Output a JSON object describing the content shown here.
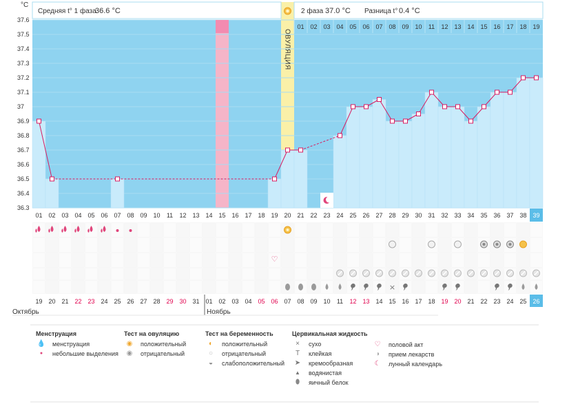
{
  "chart_data": {
    "type": "line",
    "title": "",
    "ylabel": "°C",
    "ylim": [
      36.3,
      37.6
    ],
    "yticks": [
      "37.6",
      "37.5",
      "37.4",
      "37.3",
      "37.2",
      "37.1",
      "37",
      "36.9",
      "36.8",
      "36.7",
      "36.6",
      "36.5",
      "36.4",
      "36.3"
    ],
    "header": {
      "phase1": "Средняя t° 1 фаза",
      "phase1_value": "36.6 °C",
      "phase2": "2 фаза",
      "phase2_value": "37.0 °C",
      "diff": "Разница t°",
      "diff_value": "0.4 °C"
    },
    "ovulation_label": "ОВУЛЯЦИЯ",
    "ovulation_day": 20,
    "highlight_day": 15,
    "today_day": 39,
    "cycle_days": [
      "01",
      "02",
      "03",
      "04",
      "05",
      "06",
      "07",
      "08",
      "09",
      "10",
      "11",
      "12",
      "13",
      "14",
      "15",
      "16",
      "17",
      "18",
      "19",
      "20",
      "21",
      "22",
      "23",
      "24",
      "25",
      "26",
      "27",
      "28",
      "29",
      "30",
      "31",
      "32",
      "33",
      "34",
      "35",
      "36",
      "37",
      "38",
      "39"
    ],
    "phase2_days": [
      "01",
      "02",
      "03",
      "04",
      "05",
      "06",
      "07",
      "08",
      "09",
      "10",
      "11",
      "12",
      "13",
      "14",
      "15",
      "16",
      "17",
      "18",
      "19"
    ],
    "temperatures": [
      36.9,
      36.5,
      null,
      null,
      null,
      null,
      36.5,
      null,
      null,
      null,
      null,
      null,
      null,
      null,
      null,
      null,
      null,
      null,
      36.5,
      36.7,
      36.7,
      null,
      null,
      36.8,
      37.0,
      37.0,
      37.05,
      36.9,
      36.9,
      36.95,
      37.1,
      37.0,
      37.0,
      36.9,
      37.0,
      37.1,
      37.1,
      37.2,
      37.2
    ],
    "calendar_dates": [
      "19",
      "20",
      "21",
      "22",
      "23",
      "24",
      "25",
      "26",
      "27",
      "28",
      "29",
      "30",
      "31",
      "01",
      "02",
      "03",
      "04",
      "05",
      "06",
      "07",
      "08",
      "09",
      "10",
      "11",
      "12",
      "13",
      "14",
      "15",
      "16",
      "17",
      "18",
      "19",
      "20",
      "21",
      "22",
      "23",
      "24",
      "25",
      "26"
    ],
    "red_dates_idx": [
      3,
      4,
      10,
      11,
      17,
      18,
      24,
      25,
      31,
      32
    ],
    "month1": "Октябрь",
    "month2": "Ноябрь",
    "markers": {
      "menstruation": [
        1,
        2,
        3,
        4,
        5,
        6
      ],
      "light_spotting": [
        7,
        8
      ],
      "ovulation_test_positive": [
        20
      ],
      "pregnancy_test_negative": [
        28,
        31,
        33
      ],
      "pregnancy_test_weak": [
        35,
        36,
        37
      ],
      "pregnancy_test_positive": [
        38
      ],
      "intercourse": [
        19
      ],
      "medication": [
        24,
        25,
        26,
        27,
        28,
        29,
        30,
        31,
        32,
        33,
        34,
        35,
        36,
        37,
        38,
        39
      ],
      "moon": [
        23
      ],
      "cervical": [
        {
          "day": 20,
          "type": "eggwhite"
        },
        {
          "day": 21,
          "type": "eggwhite"
        },
        {
          "day": 22,
          "type": "eggwhite"
        },
        {
          "day": 23,
          "type": "watery"
        },
        {
          "day": 24,
          "type": "watery"
        },
        {
          "day": 25,
          "type": "creamy"
        },
        {
          "day": 26,
          "type": "creamy"
        },
        {
          "day": 27,
          "type": "creamy"
        },
        {
          "day": 28,
          "type": "dry"
        },
        {
          "day": 29,
          "type": "creamy"
        },
        {
          "day": 32,
          "type": "creamy"
        },
        {
          "day": 33,
          "type": "creamy"
        },
        {
          "day": 36,
          "type": "creamy"
        },
        {
          "day": 37,
          "type": "creamy"
        },
        {
          "day": 38,
          "type": "watery"
        },
        {
          "day": 39,
          "type": "watery"
        }
      ]
    }
  },
  "legend": {
    "menstruation": {
      "title": "Менструация",
      "items": [
        "менструация",
        "небольшие выделения"
      ]
    },
    "ovulation_test": {
      "title": "Тест на овуляцию",
      "items": [
        "положительный",
        "отрицательный"
      ]
    },
    "pregnancy_test": {
      "title": "Тест на беременность",
      "items": [
        "положительный",
        "отрицательный",
        "слабоположительный"
      ]
    },
    "cervical": {
      "title": "Цервикальная жидкость",
      "items": [
        "сухо",
        "клейкая",
        "кремообразная",
        "водянистая",
        "яичный белок"
      ]
    },
    "other": {
      "items": [
        "половой акт",
        "прием лекарств",
        "лунный календарь"
      ]
    }
  }
}
